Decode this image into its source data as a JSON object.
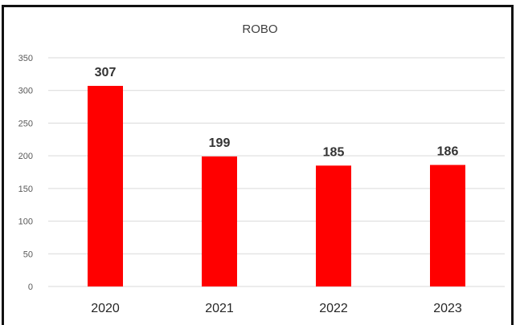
{
  "chart_data": {
    "type": "bar",
    "title": "ROBO",
    "categories": [
      "2020",
      "2021",
      "2022",
      "2023"
    ],
    "values": [
      307,
      199,
      185,
      186
    ],
    "data_labels": [
      "307",
      "199",
      "185",
      "186"
    ],
    "xlabel": "",
    "ylabel": "",
    "ylim": [
      0,
      350
    ],
    "yticks": [
      0,
      50,
      100,
      150,
      200,
      250,
      300,
      350
    ],
    "grid": true,
    "legend": "none",
    "bar_color": "#FF0000",
    "grid_color": "#D9D9D9"
  }
}
